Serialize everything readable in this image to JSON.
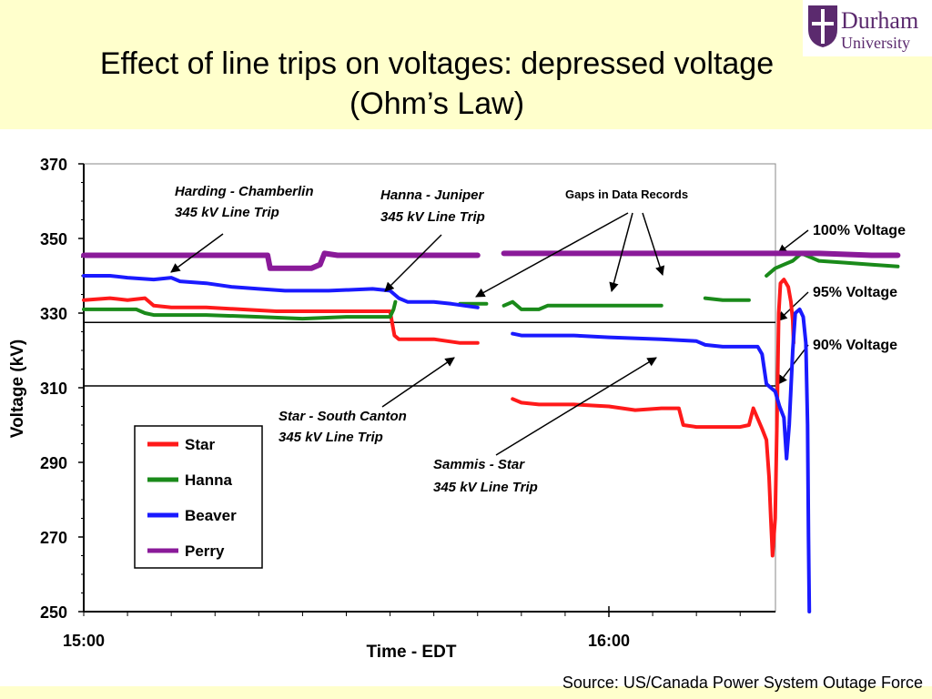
{
  "slide": {
    "title_line1": "Effect of line trips on voltages: depressed voltage",
    "title_line2": "(Ohm’s Law)",
    "source": "Source: US/Canada Power System Outage Force"
  },
  "logo": {
    "name": "Durham",
    "sub": "University",
    "color": "#5b2a6e"
  },
  "chart_data": {
    "type": "line",
    "xlabel": "Time - EDT",
    "ylabel": "Voltage (kV)",
    "x_ticks": [
      "15:00",
      "16:00"
    ],
    "y_ticks": [
      250,
      270,
      290,
      310,
      330,
      350,
      370
    ],
    "ylim": [
      250,
      370
    ],
    "x_range_minutes_from_1500": [
      0,
      79
    ],
    "grid": false,
    "legend_position": "bottom-left",
    "reference_lines": [
      {
        "label": "100% Voltage",
        "value": 345.5
      },
      {
        "label": "95% Voltage",
        "value": 327.5
      },
      {
        "label": "90% Voltage",
        "value": 310.5
      }
    ],
    "annotations": [
      {
        "text_line1": "Harding - Chamberlin",
        "text_line2": "345 kV Line Trip"
      },
      {
        "text_line1": "Hanna - Juniper",
        "text_line2": "345 kV Line Trip"
      },
      {
        "text_line1": "Gaps in Data Records",
        "text_line2": ""
      },
      {
        "text_line1": "Star - South Canton",
        "text_line2": "345 kV Line Trip"
      },
      {
        "text_line1": "Sammis - Star",
        "text_line2": "345 kV  Line Trip"
      }
    ],
    "series": [
      {
        "name": "Star",
        "color": "#ff1a1a",
        "segments": [
          [
            [
              0,
              333.5
            ],
            [
              3,
              334
            ],
            [
              5,
              333.5
            ],
            [
              7,
              334
            ],
            [
              8,
              332
            ],
            [
              10,
              331.5
            ],
            [
              14,
              331.5
            ],
            [
              18,
              331
            ],
            [
              22,
              330.5
            ],
            [
              28,
              330.5
            ],
            [
              33,
              330.5
            ],
            [
              35,
              330.5
            ],
            [
              35.5,
              324
            ],
            [
              36,
              323
            ],
            [
              40,
              323
            ],
            [
              43,
              322
            ],
            [
              45,
              322
            ]
          ],
          [
            [
              49,
              307
            ],
            [
              50,
              306
            ],
            [
              52,
              305.5
            ],
            [
              56,
              305.5
            ],
            [
              60,
              305
            ],
            [
              63,
              304
            ],
            [
              66,
              304.5
            ],
            [
              68,
              304.5
            ],
            [
              68.5,
              300
            ],
            [
              70,
              299.5
            ],
            [
              75,
              299.5
            ],
            [
              76,
              300
            ],
            [
              76.5,
              304.5
            ],
            [
              77.5,
              299
            ],
            [
              78,
              296
            ],
            [
              78.3,
              286
            ],
            [
              78.5,
              275
            ],
            [
              78.7,
              265
            ],
            [
              79,
              275
            ],
            [
              79.2,
              300
            ],
            [
              79.4,
              330
            ],
            [
              79.6,
              338
            ],
            [
              80,
              339
            ],
            [
              80.5,
              337
            ],
            [
              80.8,
              333
            ],
            [
              81,
              328
            ],
            [
              81.1,
              322
            ]
          ]
        ]
      },
      {
        "name": "Hanna",
        "color": "#1a8a1a",
        "segments": [
          [
            [
              0,
              331
            ],
            [
              6,
              331
            ],
            [
              7,
              330
            ],
            [
              8,
              329.5
            ],
            [
              14,
              329.5
            ],
            [
              20,
              329
            ],
            [
              25,
              328.5
            ],
            [
              30,
              329
            ],
            [
              35,
              329
            ],
            [
              35.4,
              331
            ],
            [
              35.6,
              333
            ]
          ],
          [
            [
              43,
              332.5
            ],
            [
              46,
              332.5
            ]
          ],
          [
            [
              48,
              332
            ],
            [
              49,
              333
            ],
            [
              50,
              331
            ],
            [
              52,
              331
            ],
            [
              53,
              332
            ],
            [
              58,
              332
            ],
            [
              66,
              332
            ]
          ],
          [
            [
              71,
              334
            ],
            [
              73,
              333.5
            ],
            [
              76,
              333.5
            ]
          ],
          [
            [
              78,
              340
            ],
            [
              79,
              342
            ],
            [
              80,
              343
            ],
            [
              81,
              344
            ],
            [
              82,
              346
            ],
            [
              84,
              344
            ],
            [
              87,
              343.5
            ],
            [
              90,
              343
            ],
            [
              93,
              342.5
            ]
          ]
        ]
      },
      {
        "name": "Beaver",
        "color": "#1a1aff",
        "segments": [
          [
            [
              0,
              340
            ],
            [
              3,
              340
            ],
            [
              5,
              339.5
            ],
            [
              8,
              339
            ],
            [
              10,
              339.5
            ],
            [
              11,
              338.5
            ],
            [
              14,
              338
            ],
            [
              17,
              337
            ],
            [
              20,
              336.5
            ],
            [
              23,
              336
            ],
            [
              28,
              336
            ],
            [
              33,
              336.5
            ],
            [
              35,
              336
            ],
            [
              36,
              334
            ],
            [
              37,
              333
            ],
            [
              40,
              333
            ],
            [
              42,
              332.5
            ],
            [
              45,
              331.5
            ]
          ],
          [
            [
              49,
              324.5
            ],
            [
              50,
              324
            ],
            [
              56,
              324
            ],
            [
              60,
              323.5
            ],
            [
              66,
              323
            ],
            [
              70,
              322.5
            ],
            [
              71,
              321.5
            ],
            [
              73,
              321
            ],
            [
              77,
              321
            ],
            [
              77.5,
              319
            ],
            [
              78,
              311
            ],
            [
              79,
              309
            ],
            [
              79.5,
              305
            ],
            [
              80,
              302
            ],
            [
              80.3,
              291
            ],
            [
              80.6,
              300
            ],
            [
              81,
              320
            ],
            [
              81.3,
              330
            ],
            [
              81.8,
              331
            ],
            [
              82.2,
              329
            ],
            [
              82.5,
              322
            ],
            [
              82.7,
              300
            ],
            [
              82.8,
              270
            ],
            [
              82.9,
              250
            ]
          ]
        ]
      },
      {
        "name": "Perry",
        "color": "#8a1a99",
        "segments": [
          [
            [
              0,
              345.5
            ],
            [
              20,
              345.5
            ],
            [
              21,
              345.5
            ],
            [
              21.3,
              342
            ],
            [
              26,
              342
            ],
            [
              27,
              343
            ],
            [
              27.5,
              346
            ],
            [
              29,
              345.5
            ],
            [
              45,
              345.5
            ]
          ],
          [
            [
              48,
              346
            ],
            [
              56,
              346
            ],
            [
              66,
              346
            ],
            [
              76,
              346
            ],
            [
              84,
              346
            ],
            [
              90,
              345.5
            ],
            [
              93,
              345.5
            ]
          ]
        ]
      }
    ]
  }
}
